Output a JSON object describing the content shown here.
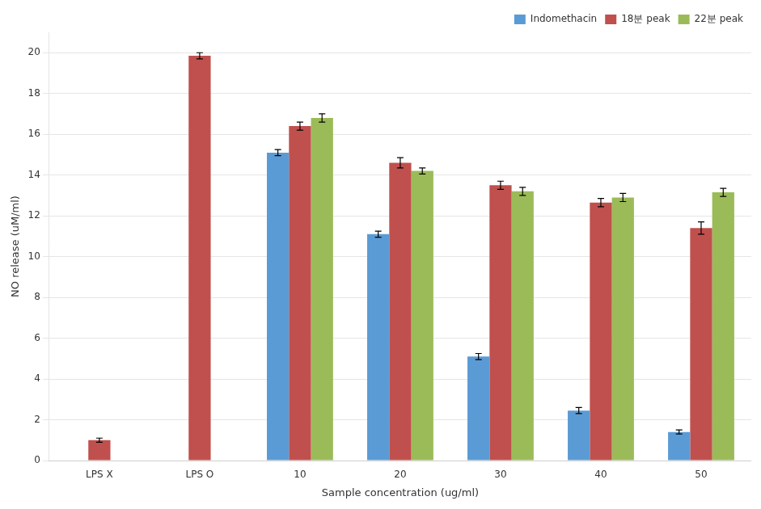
{
  "chart_data": {
    "type": "bar",
    "categories": [
      "LPS X",
      "LPS O",
      "10",
      "20",
      "30",
      "40",
      "50"
    ],
    "xlabel": "Sample concentration (ug/ml)",
    "ylabel": "NO release (uM/ml)",
    "series": [
      {
        "name": "Indomethacin",
        "color": "#5B9BD5",
        "values": [
          null,
          null,
          15.1,
          11.1,
          5.1,
          2.45,
          1.4
        ],
        "errors": [
          null,
          null,
          0.15,
          0.15,
          0.15,
          0.15,
          0.1
        ]
      },
      {
        "name": "18분 peak",
        "color": "#C0504D",
        "values": [
          1.0,
          19.85,
          16.4,
          14.6,
          13.5,
          12.65,
          11.4
        ],
        "errors": [
          0.1,
          0.15,
          0.2,
          0.25,
          0.2,
          0.2,
          0.3
        ]
      },
      {
        "name": "22분 peak",
        "color": "#9BBB59",
        "values": [
          null,
          null,
          16.8,
          14.2,
          13.2,
          12.9,
          13.15
        ],
        "errors": [
          null,
          null,
          0.2,
          0.15,
          0.2,
          0.2,
          0.2
        ]
      }
    ],
    "ylim": [
      0,
      21
    ],
    "yticks": [
      0,
      2,
      4,
      6,
      8,
      10,
      12,
      14,
      16,
      18,
      20
    ],
    "grid": true,
    "legend": "upper right"
  }
}
